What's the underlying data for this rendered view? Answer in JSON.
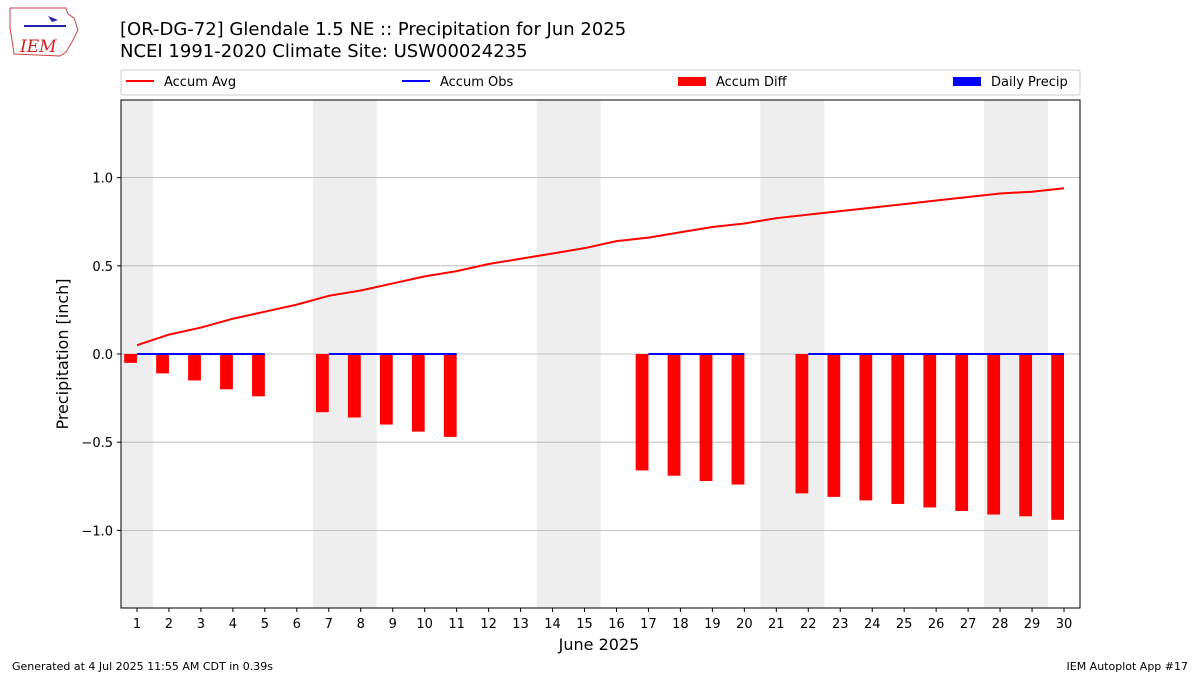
{
  "chart_data": {
    "type": "combo",
    "title": "[OR-DG-72] Glendale 1.5 NE :: Precipitation for Jun 2025",
    "subtitle": "NCEI 1991-2020 Climate Site: USW00024235",
    "logo_text": "IEM",
    "xlabel": "June 2025",
    "ylabel": "Precipitation [inch]",
    "footer_left": "Generated at 4 Jul 2025 11:55 AM CDT in 0.39s",
    "footer_right": "IEM Autoplot App #17",
    "x": [
      1,
      2,
      3,
      4,
      5,
      6,
      7,
      8,
      9,
      10,
      11,
      12,
      13,
      14,
      15,
      16,
      17,
      18,
      19,
      20,
      21,
      22,
      23,
      24,
      25,
      26,
      27,
      28,
      29,
      30
    ],
    "xlim": [
      0.5,
      30.5
    ],
    "ylim": [
      -1.44,
      1.44
    ],
    "yticks": [
      {
        "value": -1.0,
        "label": "−1.0"
      },
      {
        "value": -0.5,
        "label": "−0.5"
      },
      {
        "value": 0,
        "label": "0.0"
      },
      {
        "value": 0.5,
        "label": "0.5"
      },
      {
        "value": 1.0,
        "label": "1.0"
      }
    ],
    "grid": true,
    "shaded_bands": [
      [
        0.5,
        1.5
      ],
      [
        6.5,
        8.5
      ],
      [
        13.5,
        15.5
      ],
      [
        20.5,
        22.5
      ],
      [
        27.5,
        29.5
      ]
    ],
    "series": [
      {
        "name": "Accum Avg",
        "kind": "line",
        "color": "#ff0000",
        "values": [
          0.05,
          0.11,
          0.15,
          0.2,
          0.24,
          0.28,
          0.33,
          0.36,
          0.4,
          0.44,
          0.47,
          0.51,
          0.54,
          0.57,
          0.6,
          0.64,
          0.66,
          0.69,
          0.72,
          0.74,
          0.77,
          0.79,
          0.81,
          0.83,
          0.85,
          0.87,
          0.89,
          0.91,
          0.92,
          0.94
        ]
      },
      {
        "name": "Accum Obs",
        "kind": "line",
        "color": "#0000ff",
        "values": [
          0,
          0,
          0,
          0,
          0,
          null,
          0,
          0,
          0,
          0,
          0,
          null,
          null,
          null,
          null,
          null,
          0,
          0,
          0,
          0,
          null,
          0,
          0,
          0,
          0,
          0,
          0,
          0,
          0,
          0
        ]
      },
      {
        "name": "Accum Diff",
        "kind": "bar",
        "color": "#ff0000",
        "values": [
          -0.05,
          -0.11,
          -0.15,
          -0.2,
          -0.24,
          null,
          -0.33,
          -0.36,
          -0.4,
          -0.44,
          -0.47,
          null,
          null,
          null,
          null,
          null,
          -0.66,
          -0.69,
          -0.72,
          -0.74,
          null,
          -0.79,
          -0.81,
          -0.83,
          -0.85,
          -0.87,
          -0.89,
          -0.91,
          -0.92,
          -0.94
        ]
      },
      {
        "name": "Daily Precip",
        "kind": "bar",
        "color": "#0000ff",
        "values": [
          0,
          0,
          0,
          0,
          0,
          null,
          0,
          0,
          0,
          0,
          0,
          null,
          null,
          null,
          null,
          null,
          0,
          0,
          0,
          0,
          null,
          0,
          0,
          0,
          0,
          0,
          0,
          0,
          0,
          0
        ]
      }
    ]
  }
}
